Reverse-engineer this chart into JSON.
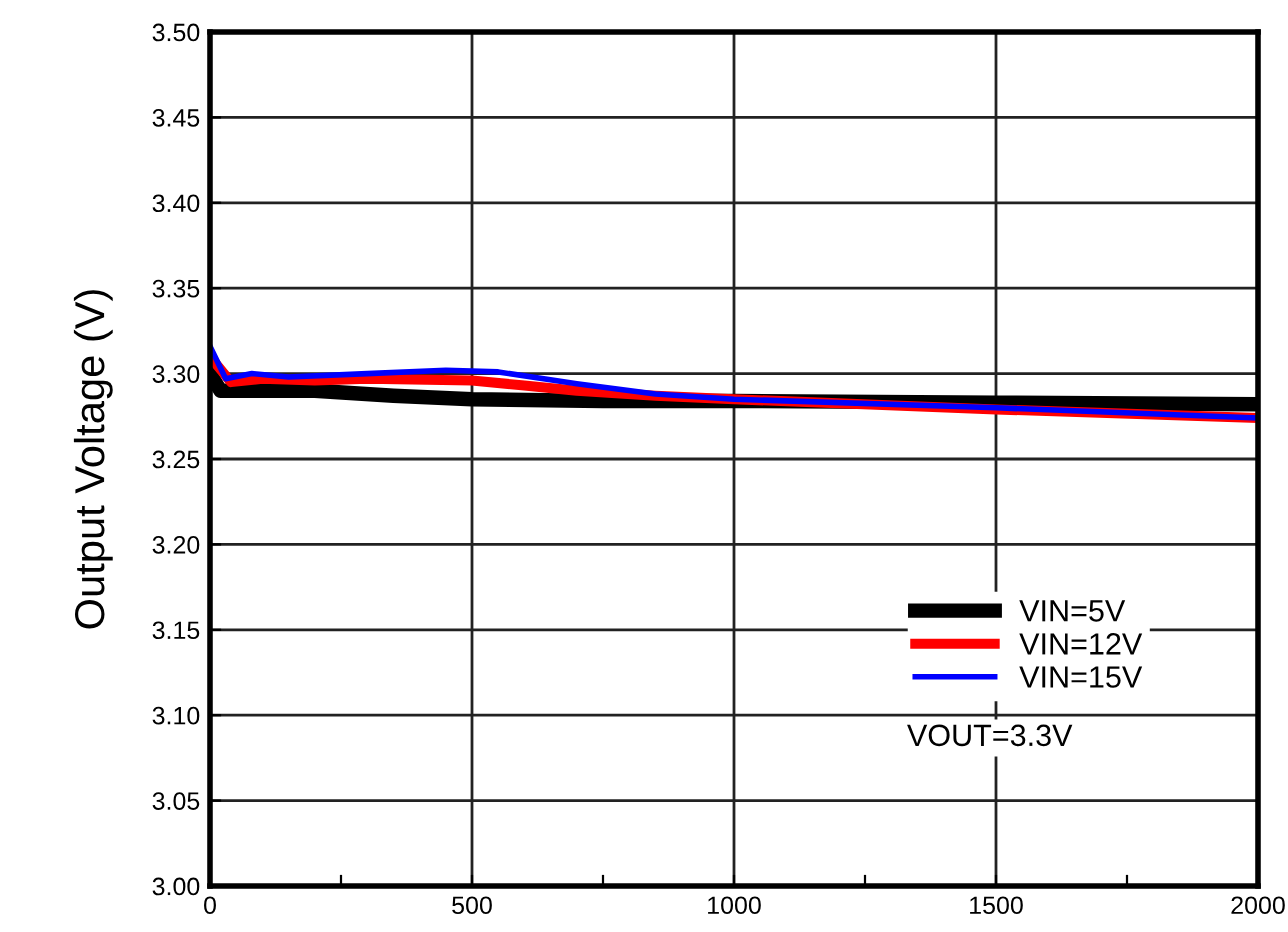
{
  "chart_data": {
    "type": "line",
    "ylabel": "Output Voltage (V)",
    "xlim": [
      0,
      2000
    ],
    "ylim": [
      3.0,
      3.5
    ],
    "xticks": [
      0,
      {
        "value": 250,
        "label": null
      },
      500,
      {
        "value": 750,
        "label": null
      },
      1000,
      {
        "value": 1250,
        "label": null
      },
      1500,
      {
        "value": 1750,
        "label": null
      },
      2000
    ],
    "yticks": [
      {
        "value": 3.0,
        "label": "3.00"
      },
      {
        "value": 3.05,
        "label": "3.05"
      },
      {
        "value": 3.1,
        "label": "3.10"
      },
      {
        "value": 3.15,
        "label": "3.15"
      },
      {
        "value": 3.2,
        "label": "3.20"
      },
      {
        "value": 3.25,
        "label": "3.25"
      },
      {
        "value": 3.3,
        "label": "3.30"
      },
      {
        "value": 3.35,
        "label": "3.35"
      },
      {
        "value": 3.4,
        "label": "3.40"
      },
      {
        "value": 3.45,
        "label": "3.45"
      },
      {
        "value": 3.5,
        "label": "3.50"
      }
    ],
    "grid": true,
    "legend": "bottom right",
    "annotations": [
      "VOUT=3.3V"
    ],
    "series": [
      {
        "name": "VIN=5V",
        "color": "#000000",
        "x": [
          0,
          20,
          100,
          200,
          350,
          500,
          750,
          1000,
          1500,
          2000
        ],
        "values": [
          3.3,
          3.29,
          3.29,
          3.29,
          3.287,
          3.285,
          3.284,
          3.284,
          3.283,
          3.282
        ]
      },
      {
        "name": "VIN=12V",
        "color": "#ff0000",
        "x": [
          0,
          40,
          100,
          200,
          300,
          500,
          600,
          700,
          850,
          1000,
          1500,
          2000
        ],
        "values": [
          3.31,
          3.295,
          3.297,
          3.296,
          3.297,
          3.296,
          3.293,
          3.29,
          3.287,
          3.285,
          3.279,
          3.274
        ]
      },
      {
        "name": "VIN=15V",
        "color": "#0000ff",
        "x": [
          0,
          30,
          80,
          150,
          300,
          450,
          550,
          700,
          850,
          1000,
          1500,
          2000
        ],
        "values": [
          3.316,
          3.297,
          3.3,
          3.298,
          3.3,
          3.302,
          3.301,
          3.294,
          3.288,
          3.285,
          3.28,
          3.274
        ]
      }
    ]
  }
}
